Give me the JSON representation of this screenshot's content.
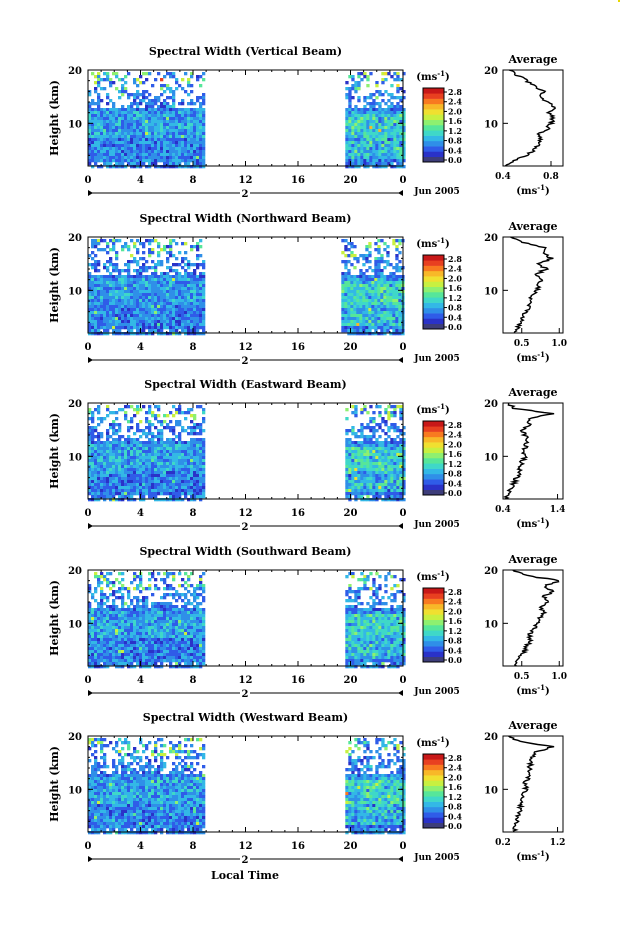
{
  "figure": {
    "x_axis_title": "Local Time",
    "date_label": "Jun 2005",
    "y_axis_title": "Height (km)",
    "colorbar_unit": "(ms",
    "colorbar_unit_exp": "-1",
    "colorbar_unit_close": ")",
    "average_title": "Average",
    "average_unit": "(ms",
    "average_unit_exp": "-1",
    "average_unit_close": ")"
  },
  "colorbar": {
    "ticks": [
      "2.8",
      "2.4",
      "2.0",
      "1.6",
      "1.2",
      "0.8",
      "0.4",
      "0.0"
    ],
    "colors": [
      "#3d3d7a",
      "#2a32c8",
      "#2f5ce8",
      "#2f8fe8",
      "#33b8e6",
      "#3fd8c8",
      "#56e69a",
      "#8ef070",
      "#c8f040",
      "#f0e030",
      "#f8b828",
      "#f87a20",
      "#e84020",
      "#c81818"
    ]
  },
  "chart_data": [
    {
      "type": "heatmap",
      "title": "Spectral Width (Vertical Beam)",
      "xlabel": "",
      "ylabel": "Height (km)",
      "x_ticks": [
        "0",
        "4",
        "8",
        "12",
        "16",
        "20",
        "0"
      ],
      "y_ticks": [
        "20",
        "10"
      ],
      "day_label": "2",
      "xlim": [
        0,
        24
      ],
      "ylim": [
        2,
        20
      ],
      "data_x_ranges": [
        [
          0,
          8.8
        ],
        [
          19.6,
          24
        ]
      ],
      "colorbar": {
        "min": 0.0,
        "max": 3.0,
        "unit": "ms-1"
      },
      "average": {
        "title": "Average",
        "xlabel": "(ms-1)",
        "x_ticks": [
          "0.4",
          "0.8"
        ],
        "xlim": [
          0.4,
          0.9
        ],
        "y_ticks": [
          "20",
          "10"
        ],
        "ylim": [
          2,
          20
        ],
        "height": [
          2,
          3,
          4,
          5,
          6,
          7,
          8,
          9,
          10,
          11,
          12,
          13,
          14,
          15,
          16,
          17,
          18,
          19,
          20
        ],
        "values": [
          0.42,
          0.48,
          0.6,
          0.66,
          0.69,
          0.72,
          0.7,
          0.77,
          0.8,
          0.82,
          0.78,
          0.84,
          0.76,
          0.7,
          0.74,
          0.66,
          0.6,
          0.52,
          0.45
        ]
      }
    },
    {
      "type": "heatmap",
      "title": "Spectral Width (Northward Beam)",
      "xlabel": "",
      "ylabel": "Height (km)",
      "x_ticks": [
        "0",
        "4",
        "8",
        "12",
        "16",
        "20",
        "0"
      ],
      "y_ticks": [
        "20",
        "10"
      ],
      "day_label": "2",
      "xlim": [
        0,
        24
      ],
      "ylim": [
        2,
        20
      ],
      "data_x_ranges": [
        [
          0,
          8.8
        ],
        [
          19.3,
          24
        ]
      ],
      "colorbar": {
        "min": 0.0,
        "max": 3.0,
        "unit": "ms-1"
      },
      "average": {
        "title": "Average",
        "xlabel": "(ms-1)",
        "x_ticks": [
          "0.5",
          "1.0"
        ],
        "xlim": [
          0.25,
          1.05
        ],
        "y_ticks": [
          "20",
          "10"
        ],
        "ylim": [
          2,
          20
        ],
        "height": [
          2,
          3,
          4,
          5,
          6,
          7,
          8,
          9,
          10,
          11,
          12,
          13,
          14,
          15,
          16,
          17,
          18,
          19,
          20
        ],
        "values": [
          0.4,
          0.45,
          0.5,
          0.52,
          0.56,
          0.6,
          0.62,
          0.64,
          0.7,
          0.72,
          0.78,
          0.7,
          0.82,
          0.74,
          0.9,
          0.78,
          0.82,
          0.5,
          0.35
        ]
      }
    },
    {
      "type": "heatmap",
      "title": "Spectral Width (Eastward Beam)",
      "xlabel": "",
      "ylabel": "Height (km)",
      "x_ticks": [
        "0",
        "4",
        "8",
        "12",
        "16",
        "20",
        "0"
      ],
      "y_ticks": [
        "20",
        "10"
      ],
      "day_label": "2",
      "xlim": [
        0,
        24
      ],
      "ylim": [
        2,
        20
      ],
      "data_x_ranges": [
        [
          0,
          8.8
        ],
        [
          19.6,
          24
        ]
      ],
      "colorbar": {
        "min": 0.0,
        "max": 3.0,
        "unit": "ms-1"
      },
      "average": {
        "title": "Average",
        "xlabel": "(ms-1)",
        "x_ticks": [
          "0.4",
          "1.4"
        ],
        "xlim": [
          0.4,
          1.5
        ],
        "y_ticks": [
          "20",
          "10"
        ],
        "ylim": [
          2,
          20
        ],
        "height": [
          2,
          3,
          4,
          5,
          6,
          7,
          8,
          9,
          10,
          11,
          12,
          13,
          14,
          15,
          16,
          17,
          18,
          19,
          20
        ],
        "values": [
          0.45,
          0.5,
          0.55,
          0.6,
          0.65,
          0.7,
          0.72,
          0.75,
          0.8,
          0.78,
          0.82,
          0.85,
          0.8,
          0.75,
          0.9,
          0.85,
          1.3,
          0.6,
          0.5
        ]
      }
    },
    {
      "type": "heatmap",
      "title": "Spectral Width (Southward Beam)",
      "xlabel": "",
      "ylabel": "Height (km)",
      "x_ticks": [
        "0",
        "4",
        "8",
        "12",
        "16",
        "20",
        "0"
      ],
      "y_ticks": [
        "20",
        "10"
      ],
      "day_label": "2",
      "xlim": [
        0,
        24
      ],
      "ylim": [
        2,
        20
      ],
      "data_x_ranges": [
        [
          0,
          8.8
        ],
        [
          19.6,
          24
        ]
      ],
      "colorbar": {
        "min": 0.0,
        "max": 3.0,
        "unit": "ms-1"
      },
      "average": {
        "title": "Average",
        "xlabel": "(ms-1)",
        "x_ticks": [
          "0.5",
          "1.0"
        ],
        "xlim": [
          0.25,
          1.05
        ],
        "y_ticks": [
          "20",
          "10"
        ],
        "ylim": [
          2,
          20
        ],
        "height": [
          2,
          3,
          4,
          5,
          6,
          7,
          8,
          9,
          10,
          11,
          12,
          13,
          14,
          15,
          16,
          17,
          18,
          19,
          20
        ],
        "values": [
          0.4,
          0.45,
          0.5,
          0.54,
          0.58,
          0.62,
          0.6,
          0.66,
          0.7,
          0.74,
          0.8,
          0.76,
          0.85,
          0.78,
          0.92,
          0.8,
          1.0,
          0.55,
          0.38
        ]
      }
    },
    {
      "type": "heatmap",
      "title": "Spectral Width (Westward Beam)",
      "xlabel": "Local Time",
      "ylabel": "Height (km)",
      "x_ticks": [
        "0",
        "4",
        "8",
        "12",
        "16",
        "20",
        "0"
      ],
      "y_ticks": [
        "20",
        "10"
      ],
      "day_label": "2",
      "xlim": [
        0,
        24
      ],
      "ylim": [
        2,
        20
      ],
      "data_x_ranges": [
        [
          0,
          8.8
        ],
        [
          19.6,
          24
        ]
      ],
      "colorbar": {
        "min": 0.0,
        "max": 3.0,
        "unit": "ms-1"
      },
      "average": {
        "title": "Average",
        "xlabel": "(ms-1)",
        "x_ticks": [
          "0.2",
          "1.2"
        ],
        "xlim": [
          0.2,
          1.3
        ],
        "y_ticks": [
          "20",
          "10"
        ],
        "ylim": [
          2,
          20
        ],
        "height": [
          2,
          3,
          4,
          5,
          6,
          7,
          8,
          9,
          10,
          11,
          12,
          13,
          14,
          15,
          16,
          17,
          18,
          19,
          20
        ],
        "values": [
          0.4,
          0.42,
          0.45,
          0.48,
          0.5,
          0.52,
          0.55,
          0.58,
          0.62,
          0.6,
          0.65,
          0.7,
          0.68,
          0.72,
          0.75,
          0.8,
          1.1,
          0.5,
          0.3
        ]
      }
    }
  ]
}
